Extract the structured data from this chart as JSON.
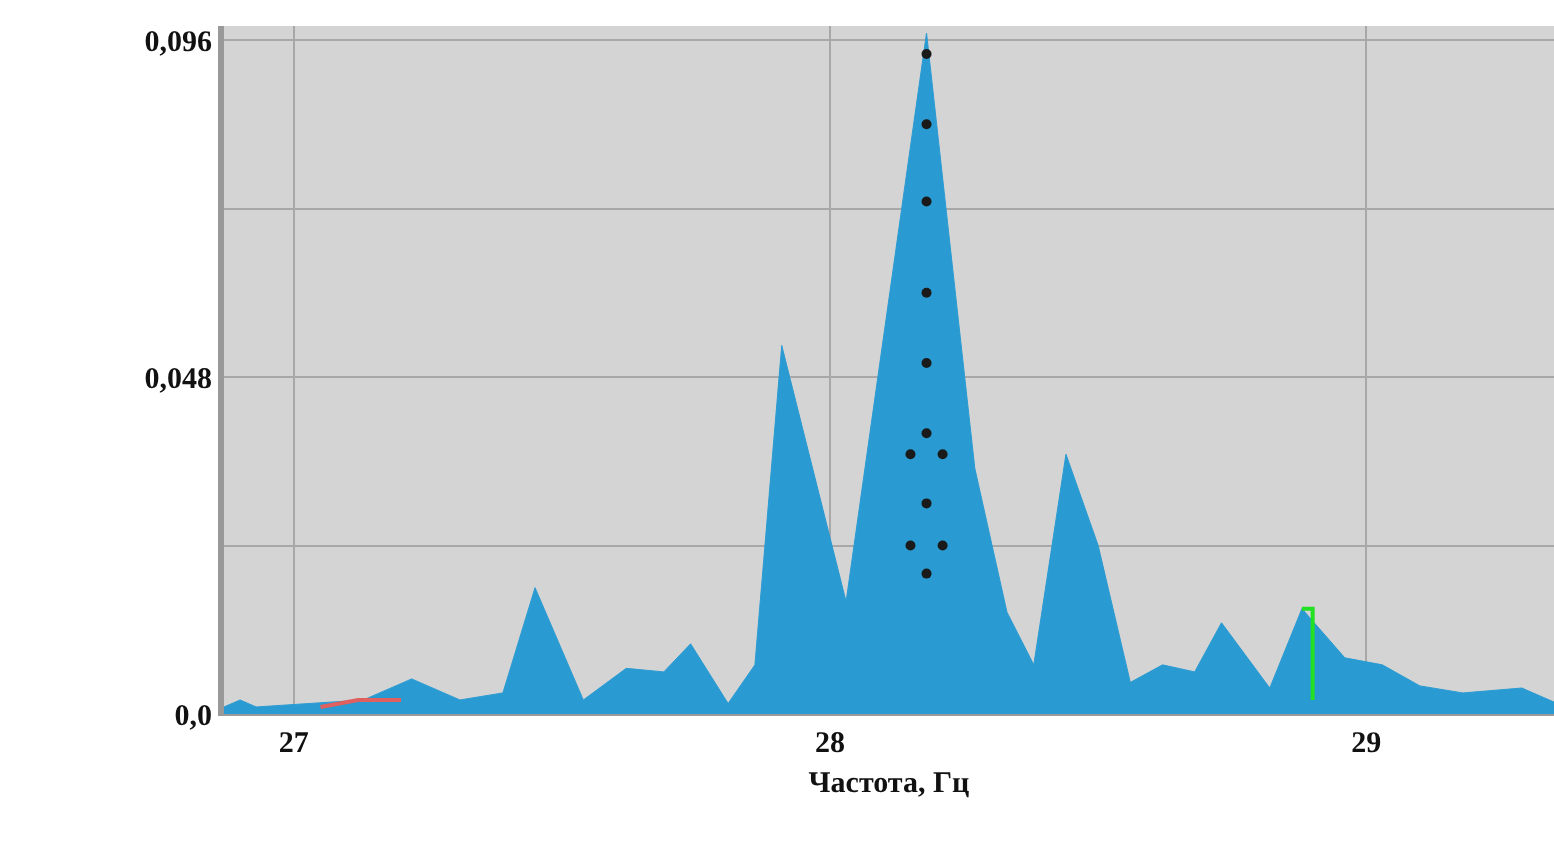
{
  "chart_data": {
    "type": "area",
    "xlabel": "Частота, Гц",
    "xlim": [
      26.87,
      29.35
    ],
    "xticks": [
      27,
      28,
      29
    ],
    "ylim": [
      0,
      0.098
    ],
    "yticks": [
      {
        "value": 0,
        "label": "0,0"
      },
      {
        "value": 0.024,
        "label": null
      },
      {
        "value": 0.048,
        "label": "0,048"
      },
      {
        "value": 0.072,
        "label": null
      },
      {
        "value": 0.096,
        "label": "0,096"
      }
    ],
    "grid": true,
    "series": [
      {
        "color": "#2a9bd2",
        "x": [
          26.87,
          26.9,
          26.93,
          27.13,
          27.22,
          27.31,
          27.39,
          27.45,
          27.54,
          27.62,
          27.69,
          27.74,
          27.81,
          27.86,
          27.91,
          28.03,
          28.18,
          28.27,
          28.33,
          28.38,
          28.44,
          28.5,
          28.56,
          28.62,
          28.68,
          28.73,
          28.82,
          28.88,
          28.96,
          29.03,
          29.1,
          29.18,
          29.29,
          29.35
        ],
        "values": [
          0.001,
          0.002,
          0.001,
          0.002,
          0.005,
          0.002,
          0.003,
          0.018,
          0.002,
          0.0065,
          0.006,
          0.01,
          0.0015,
          0.007,
          0.0525,
          0.016,
          0.097,
          0.035,
          0.0145,
          0.007,
          0.037,
          0.024,
          0.0045,
          0.007,
          0.006,
          0.013,
          0.0037,
          0.015,
          0.008,
          0.007,
          0.004,
          0.003,
          0.0037,
          0.0017
        ]
      },
      {
        "type": "scatter",
        "marker": "circle",
        "color": "#1a1a1a",
        "x": [
          28.18,
          28.18,
          28.18,
          28.18,
          28.18,
          28.18,
          28.18,
          28.18,
          28.15,
          28.21,
          28.15,
          28.21
        ],
        "values": [
          0.094,
          0.084,
          0.073,
          0.06,
          0.05,
          0.04,
          0.03,
          0.02,
          0.037,
          0.037,
          0.024,
          0.024
        ]
      },
      {
        "type": "line",
        "color": "#22e022",
        "x": [
          28.88,
          28.9,
          28.9
        ],
        "values": [
          0.015,
          0.015,
          0.002
        ]
      },
      {
        "type": "line",
        "color": "#e06060",
        "x": [
          27.05,
          27.12,
          27.2
        ],
        "values": [
          0.001,
          0.002,
          0.002
        ]
      }
    ]
  }
}
